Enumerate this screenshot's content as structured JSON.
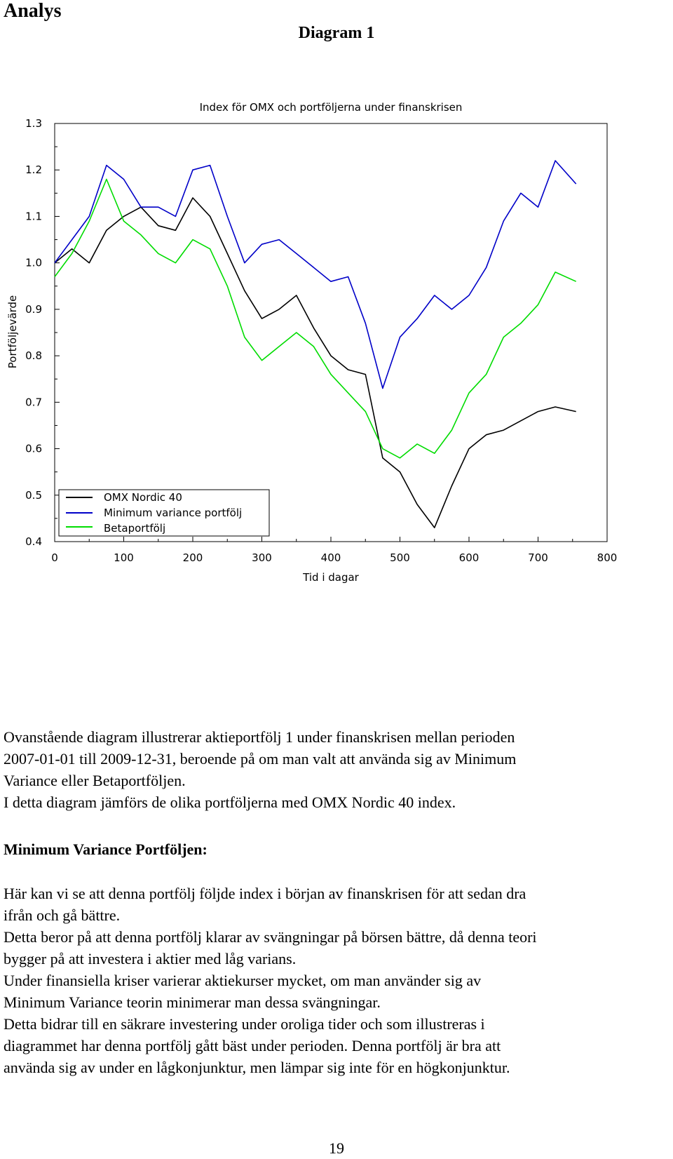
{
  "heading": "Analys",
  "caption": "Diagram 1",
  "chart_data": {
    "type": "line",
    "title": "Index för OMX och portföljerna under finanskrisen",
    "xlabel": "Tid i dagar",
    "ylabel": "Portföljevärde",
    "xlim": [
      0,
      800
    ],
    "ylim": [
      0.4,
      1.3
    ],
    "xticks": [
      "0",
      "100",
      "200",
      "300",
      "400",
      "500",
      "600",
      "700",
      "800"
    ],
    "yticks": [
      "0.4",
      "0.5",
      "0.6",
      "0.7",
      "0.8",
      "0.9",
      "1.0",
      "1.1",
      "1.2",
      "1.3"
    ],
    "legend_position": "bottom-left",
    "grid": false,
    "series": [
      {
        "name": "OMX Nordic 40",
        "color": "#000000",
        "x": [
          0,
          25,
          50,
          75,
          100,
          125,
          150,
          175,
          200,
          225,
          250,
          275,
          300,
          325,
          350,
          375,
          400,
          425,
          450,
          475,
          500,
          525,
          550,
          575,
          600,
          625,
          650,
          675,
          700,
          725,
          755
        ],
        "y": [
          1.0,
          1.03,
          1.0,
          1.07,
          1.1,
          1.12,
          1.08,
          1.07,
          1.14,
          1.1,
          1.02,
          0.94,
          0.88,
          0.9,
          0.93,
          0.86,
          0.8,
          0.77,
          0.76,
          0.58,
          0.55,
          0.48,
          0.43,
          0.52,
          0.6,
          0.63,
          0.64,
          0.66,
          0.68,
          0.69,
          0.68
        ]
      },
      {
        "name": "Minimum variance portfölj",
        "color": "#0000c8",
        "x": [
          0,
          25,
          50,
          75,
          100,
          125,
          150,
          175,
          200,
          225,
          250,
          275,
          300,
          325,
          350,
          375,
          400,
          425,
          450,
          475,
          500,
          525,
          550,
          575,
          600,
          625,
          650,
          675,
          700,
          725,
          755
        ],
        "y": [
          1.0,
          1.05,
          1.1,
          1.21,
          1.18,
          1.12,
          1.12,
          1.1,
          1.2,
          1.21,
          1.1,
          1.0,
          1.04,
          1.05,
          1.02,
          0.99,
          0.96,
          0.97,
          0.87,
          0.73,
          0.84,
          0.88,
          0.93,
          0.9,
          0.93,
          0.99,
          1.09,
          1.15,
          1.12,
          1.22,
          1.17
        ]
      },
      {
        "name": "Betaportfölj",
        "color": "#00dc00",
        "x": [
          0,
          25,
          50,
          75,
          100,
          125,
          150,
          175,
          200,
          225,
          250,
          275,
          300,
          325,
          350,
          375,
          400,
          425,
          450,
          475,
          500,
          525,
          550,
          575,
          600,
          625,
          650,
          675,
          700,
          725,
          755
        ],
        "y": [
          0.97,
          1.02,
          1.09,
          1.18,
          1.09,
          1.06,
          1.02,
          1.0,
          1.05,
          1.03,
          0.95,
          0.84,
          0.79,
          0.82,
          0.85,
          0.82,
          0.76,
          0.72,
          0.68,
          0.6,
          0.58,
          0.61,
          0.59,
          0.64,
          0.72,
          0.76,
          0.84,
          0.87,
          0.91,
          0.98,
          0.96
        ]
      }
    ]
  },
  "intro_text": [
    "Ovanstående diagram illustrerar aktieportfölj 1 under finanskrisen mellan perioden",
    "2007-01-01 till 2009-12-31, beroende på om man valt att använda sig av Minimum",
    "Variance eller Betaportföljen.",
    "I detta diagram jämförs de olika portföljerna med OMX Nordic 40 index."
  ],
  "sub_heading": "Minimum Variance Portföljen:",
  "body_text": [
    "Här kan vi se att denna portfölj följde index i början av finanskrisen för att sedan dra",
    "ifrån och gå bättre.",
    "Detta beror på att denna portfölj klarar av svängningar på börsen bättre, då denna teori",
    "bygger på att investera i aktier med låg varians.",
    "Under finansiella kriser varierar aktiekurser mycket, om man använder sig av",
    "Minimum Variance teorin minimerar man dessa svängningar.",
    "Detta bidrar till en säkrare investering under oroliga tider och som illustreras i",
    "diagrammet har denna portfölj gått bäst under perioden. Denna portfölj är bra att",
    "använda sig av under en lågkonjunktur, men lämpar sig inte för en högkonjunktur."
  ],
  "page_number": "19"
}
